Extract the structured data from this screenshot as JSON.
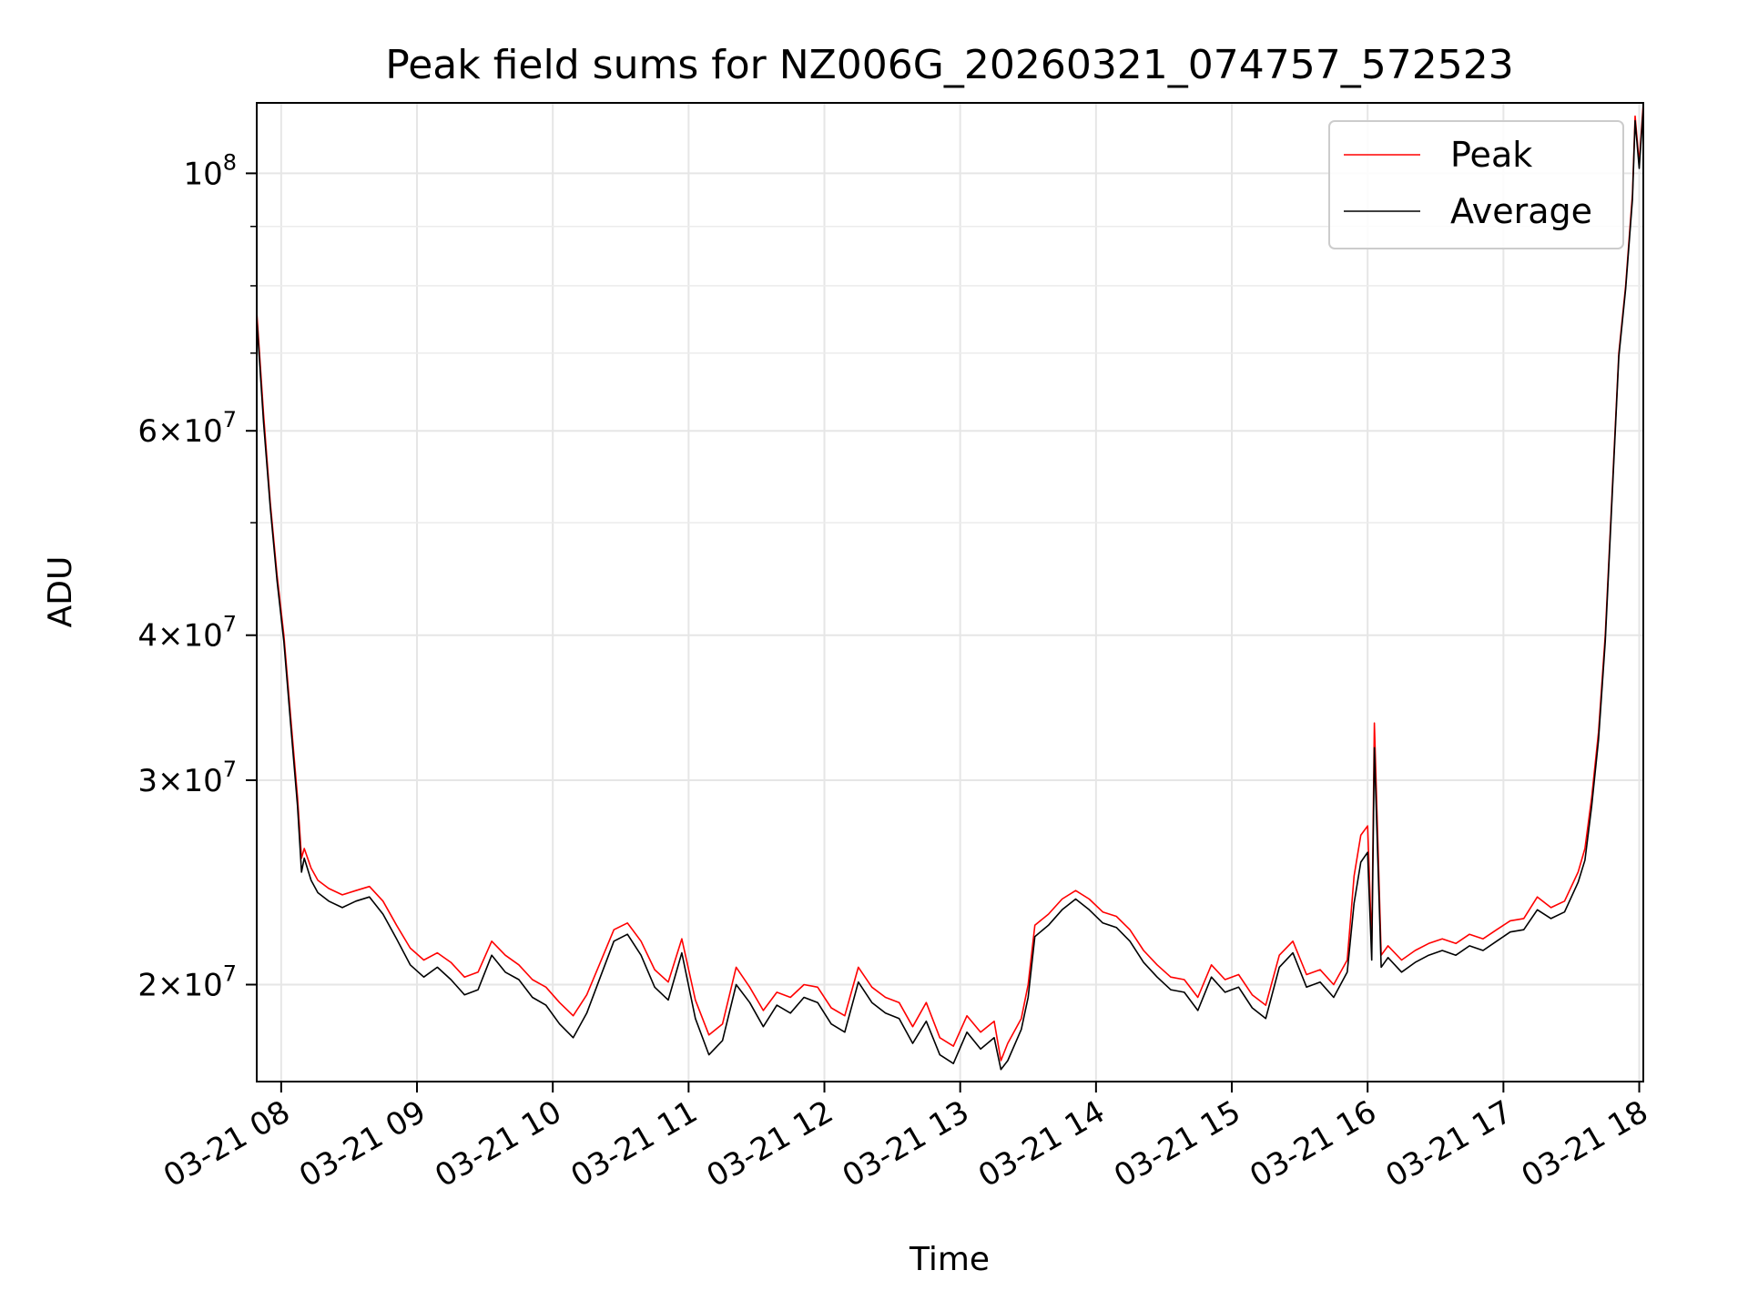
{
  "chart_data": {
    "type": "line",
    "title": "Peak field sums for NZ006G_20260321_074757_572523",
    "xlabel": "Time",
    "ylabel": "ADU",
    "yscale": "log",
    "ylim": [
      16500000,
      115000000
    ],
    "xlim_hours": [
      7.82,
      18.03
    ],
    "grid": true,
    "legend_position": "top-right",
    "x_ticks": [
      {
        "hour": 8,
        "label": "03-21 08"
      },
      {
        "hour": 9,
        "label": "03-21 09"
      },
      {
        "hour": 10,
        "label": "03-21 10"
      },
      {
        "hour": 11,
        "label": "03-21 11"
      },
      {
        "hour": 12,
        "label": "03-21 12"
      },
      {
        "hour": 13,
        "label": "03-21 13"
      },
      {
        "hour": 14,
        "label": "03-21 14"
      },
      {
        "hour": 15,
        "label": "03-21 15"
      },
      {
        "hour": 16,
        "label": "03-21 16"
      },
      {
        "hour": 17,
        "label": "03-21 17"
      },
      {
        "hour": 18,
        "label": "03-21 18"
      }
    ],
    "y_major_ticks": [
      {
        "value": 100000000,
        "mant": "",
        "exp": "8"
      },
      {
        "value": 60000000,
        "mant": "6",
        "exp": "7"
      },
      {
        "value": 40000000,
        "mant": "4",
        "exp": "7"
      },
      {
        "value": 30000000,
        "mant": "3",
        "exp": "7"
      },
      {
        "value": 20000000,
        "mant": "2",
        "exp": "7"
      }
    ],
    "y_minor_ticks": [
      90000000,
      80000000,
      70000000,
      50000000
    ],
    "series": [
      {
        "name": "Peak",
        "color": "#ff0000",
        "hours": [
          7.82,
          7.87,
          7.92,
          7.97,
          8.02,
          8.07,
          8.12,
          8.15,
          8.17,
          8.22,
          8.27,
          8.35,
          8.45,
          8.55,
          8.65,
          8.75,
          8.85,
          8.95,
          9.05,
          9.15,
          9.25,
          9.35,
          9.45,
          9.55,
          9.65,
          9.75,
          9.85,
          9.95,
          10.05,
          10.15,
          10.25,
          10.35,
          10.45,
          10.55,
          10.65,
          10.75,
          10.85,
          10.95,
          11.05,
          11.15,
          11.25,
          11.35,
          11.45,
          11.55,
          11.65,
          11.75,
          11.85,
          11.95,
          12.05,
          12.15,
          12.25,
          12.35,
          12.45,
          12.55,
          12.65,
          12.75,
          12.85,
          12.95,
          13.05,
          13.15,
          13.25,
          13.3,
          13.35,
          13.45,
          13.5,
          13.55,
          13.65,
          13.75,
          13.85,
          13.95,
          14.05,
          14.15,
          14.25,
          14.35,
          14.45,
          14.55,
          14.65,
          14.75,
          14.85,
          14.95,
          15.05,
          15.15,
          15.25,
          15.35,
          15.45,
          15.55,
          15.65,
          15.75,
          15.85,
          15.9,
          15.95,
          16.0,
          16.03,
          16.05,
          16.1,
          16.15,
          16.25,
          16.35,
          16.45,
          16.55,
          16.65,
          16.75,
          16.85,
          16.95,
          17.05,
          17.15,
          17.25,
          17.35,
          17.45,
          17.55,
          17.6,
          17.65,
          17.7,
          17.75,
          17.8,
          17.85,
          17.9,
          17.95,
          17.97,
          18.0,
          18.03
        ],
        "values": [
          76000000,
          62000000,
          52000000,
          45000000,
          40000000,
          34000000,
          29000000,
          25700000,
          26200000,
          25200000,
          24600000,
          24200000,
          23900000,
          24100000,
          24300000,
          23600000,
          22500000,
          21500000,
          21000000,
          21300000,
          20900000,
          20300000,
          20500000,
          21800000,
          21200000,
          20800000,
          20200000,
          19900000,
          19300000,
          18800000,
          19600000,
          20900000,
          22300000,
          22600000,
          21800000,
          20600000,
          20100000,
          21900000,
          19400000,
          18100000,
          18500000,
          20700000,
          19900000,
          19000000,
          19700000,
          19500000,
          20000000,
          19900000,
          19100000,
          18800000,
          20700000,
          19900000,
          19500000,
          19300000,
          18400000,
          19300000,
          18000000,
          17700000,
          18800000,
          18200000,
          18600000,
          17200000,
          17800000,
          18700000,
          20000000,
          22500000,
          23000000,
          23700000,
          24100000,
          23700000,
          23100000,
          22900000,
          22300000,
          21400000,
          20800000,
          20300000,
          20200000,
          19500000,
          20800000,
          20200000,
          20400000,
          19600000,
          19200000,
          21200000,
          21800000,
          20400000,
          20600000,
          20000000,
          21000000,
          24800000,
          26900000,
          27400000,
          21600000,
          33600000,
          21200000,
          21600000,
          21000000,
          21400000,
          21700000,
          21900000,
          21700000,
          22100000,
          21900000,
          22300000,
          22700000,
          22800000,
          23800000,
          23300000,
          23600000,
          25000000,
          26200000,
          29000000,
          33000000,
          40000000,
          53000000,
          70000000,
          80000000,
          96000000,
          112000000,
          102000000,
          115000000
        ]
      },
      {
        "name": "Average",
        "color": "#000000",
        "hours": [
          7.82,
          7.87,
          7.92,
          7.97,
          8.02,
          8.07,
          8.12,
          8.15,
          8.17,
          8.22,
          8.27,
          8.35,
          8.45,
          8.55,
          8.65,
          8.75,
          8.85,
          8.95,
          9.05,
          9.15,
          9.25,
          9.35,
          9.45,
          9.55,
          9.65,
          9.75,
          9.85,
          9.95,
          10.05,
          10.15,
          10.25,
          10.35,
          10.45,
          10.55,
          10.65,
          10.75,
          10.85,
          10.95,
          11.05,
          11.15,
          11.25,
          11.35,
          11.45,
          11.55,
          11.65,
          11.75,
          11.85,
          11.95,
          12.05,
          12.15,
          12.25,
          12.35,
          12.45,
          12.55,
          12.65,
          12.75,
          12.85,
          12.95,
          13.05,
          13.15,
          13.25,
          13.3,
          13.35,
          13.45,
          13.5,
          13.55,
          13.65,
          13.75,
          13.85,
          13.95,
          14.05,
          14.15,
          14.25,
          14.35,
          14.45,
          14.55,
          14.65,
          14.75,
          14.85,
          14.95,
          15.05,
          15.15,
          15.25,
          15.35,
          15.45,
          15.55,
          15.65,
          15.75,
          15.85,
          15.9,
          15.95,
          16.0,
          16.03,
          16.05,
          16.1,
          16.15,
          16.25,
          16.35,
          16.45,
          16.55,
          16.65,
          16.75,
          16.85,
          16.95,
          17.05,
          17.15,
          17.25,
          17.35,
          17.45,
          17.55,
          17.6,
          17.65,
          17.7,
          17.75,
          17.8,
          17.85,
          17.9,
          17.95,
          17.97,
          18.0,
          18.03
        ],
        "values": [
          75000000,
          61000000,
          51500000,
          44500000,
          39500000,
          33500000,
          28500000,
          25000000,
          25700000,
          24600000,
          24000000,
          23600000,
          23300000,
          23600000,
          23800000,
          23000000,
          21900000,
          20800000,
          20300000,
          20700000,
          20200000,
          19600000,
          19800000,
          21200000,
          20500000,
          20200000,
          19500000,
          19200000,
          18500000,
          18000000,
          18900000,
          20300000,
          21800000,
          22100000,
          21200000,
          19900000,
          19400000,
          21300000,
          18700000,
          17400000,
          17900000,
          20000000,
          19300000,
          18400000,
          19200000,
          18900000,
          19500000,
          19300000,
          18500000,
          18200000,
          20100000,
          19300000,
          18900000,
          18700000,
          17800000,
          18600000,
          17400000,
          17100000,
          18200000,
          17600000,
          18000000,
          16900000,
          17200000,
          18300000,
          19500000,
          22000000,
          22500000,
          23200000,
          23700000,
          23200000,
          22600000,
          22400000,
          21800000,
          20900000,
          20300000,
          19800000,
          19700000,
          19000000,
          20300000,
          19700000,
          19900000,
          19100000,
          18700000,
          20700000,
          21300000,
          19900000,
          20100000,
          19500000,
          20500000,
          23500000,
          25500000,
          26000000,
          21000000,
          32000000,
          20700000,
          21100000,
          20500000,
          20900000,
          21200000,
          21400000,
          21200000,
          21600000,
          21400000,
          21800000,
          22200000,
          22300000,
          23200000,
          22800000,
          23100000,
          24500000,
          25600000,
          28500000,
          32500000,
          39500000,
          52500000,
          69500000,
          79500000,
          95000000,
          111000000,
          101000000,
          114000000
        ]
      }
    ]
  }
}
